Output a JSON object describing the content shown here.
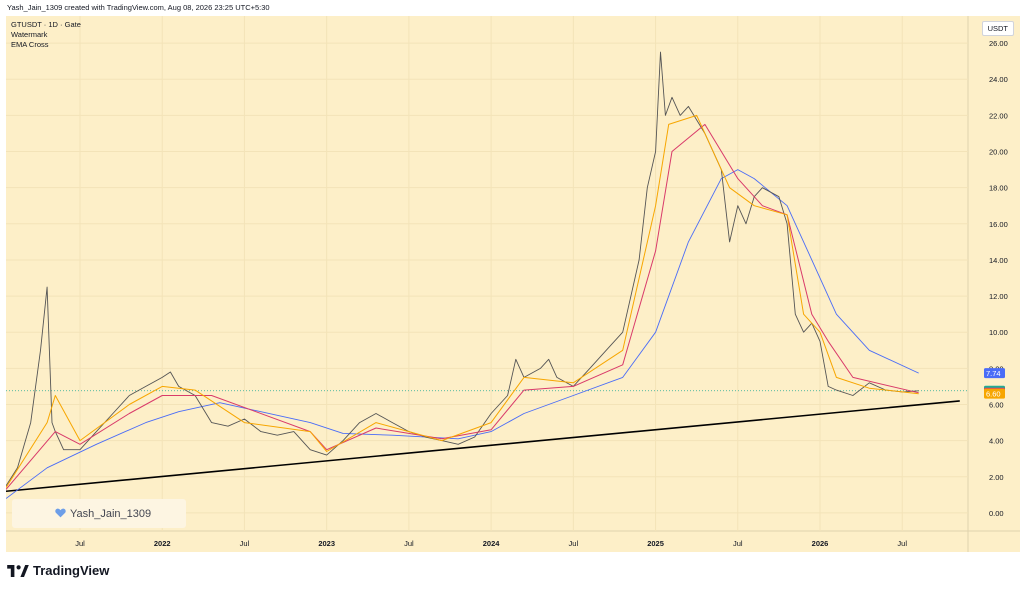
{
  "header": {
    "credit": "Yash_Jain_1309 created with TradingView.com, Aug 08, 2026 23:25 UTC+5:30"
  },
  "legend": {
    "symbol": "GTUSDT · 1D · Gate",
    "line2": "Watermark",
    "line3": "EMA Cross"
  },
  "currency_label": "USDT",
  "watermark_text": "Yash_Jain_1309",
  "brand": {
    "logo_text": "TradingView"
  },
  "colors": {
    "background": "#fdefc8",
    "price": "#555555",
    "ema_fast": "#f7a600",
    "ema_mid": "#d93a6a",
    "ema_slow": "#4a6cf7",
    "trendline": "#000000"
  },
  "chart_data": {
    "type": "line",
    "title": "",
    "y_tick_labels": [
      "0.00",
      "2.00",
      "4.00",
      "6.00",
      "8.00",
      "10.00",
      "12.00",
      "14.00",
      "16.00",
      "18.00",
      "20.00",
      "22.00",
      "24.00",
      "26.00"
    ],
    "x_tick_labels": [
      "Jul",
      "2022",
      "Jul",
      "2023",
      "Jul",
      "2024",
      "Jul",
      "2025",
      "Jul",
      "2026",
      "Jul"
    ],
    "x_tick_dates": [
      2021.5,
      2022.0,
      2022.5,
      2023.0,
      2023.5,
      2024.0,
      2024.5,
      2025.0,
      2025.5,
      2026.0,
      2026.5
    ],
    "ylim": [
      -1,
      27.5
    ],
    "xlim": [
      2021.05,
      2026.9
    ],
    "grid": true,
    "trendline": {
      "from": [
        2021.05,
        1.2
      ],
      "to": [
        2026.85,
        6.2
      ]
    },
    "price_labels": [
      {
        "value": "7.74",
        "color": "#4a6cf7"
      },
      {
        "value": "6.76",
        "color": "#22ab94"
      },
      {
        "value": "6.65",
        "color": "#d93a6a"
      },
      {
        "value": "6.60",
        "color": "#f7a600"
      }
    ],
    "series": [
      {
        "role": "price",
        "x": [
          2021.05,
          2021.12,
          2021.2,
          2021.26,
          2021.3,
          2021.33,
          2021.35,
          2021.4,
          2021.5,
          2021.6,
          2021.7,
          2021.8,
          2021.9,
          2022.0,
          2022.05,
          2022.1,
          2022.2,
          2022.3,
          2022.4,
          2022.5,
          2022.6,
          2022.7,
          2022.8,
          2022.9,
          2023.0,
          2023.1,
          2023.2,
          2023.3,
          2023.4,
          2023.5,
          2023.6,
          2023.7,
          2023.8,
          2023.9,
          2024.0,
          2024.1,
          2024.15,
          2024.2,
          2024.3,
          2024.35,
          2024.4,
          2024.5,
          2024.6,
          2024.7,
          2024.8,
          2024.9,
          2024.95,
          2025.0,
          2025.03,
          2025.06,
          2025.1,
          2025.15,
          2025.2,
          2025.3,
          2025.4,
          2025.45,
          2025.5,
          2025.55,
          2025.6,
          2025.65,
          2025.75,
          2025.8,
          2025.85,
          2025.9,
          2025.95,
          2026.0,
          2026.05,
          2026.1,
          2026.2,
          2026.3,
          2026.4,
          2026.5,
          2026.6
        ],
        "y": [
          1.5,
          2.5,
          5.0,
          9.0,
          12.5,
          5.0,
          4.5,
          3.5,
          3.5,
          4.5,
          5.5,
          6.5,
          7.0,
          7.5,
          7.8,
          7.0,
          6.5,
          5.0,
          4.8,
          5.2,
          4.5,
          4.3,
          4.5,
          3.5,
          3.2,
          4.0,
          5.0,
          5.5,
          5.0,
          4.5,
          4.2,
          4.0,
          3.8,
          4.2,
          5.5,
          6.5,
          8.5,
          7.5,
          8.0,
          8.5,
          7.5,
          7.0,
          8.0,
          9.0,
          10.0,
          14.0,
          18.0,
          20.0,
          25.5,
          22.0,
          23.0,
          22.0,
          22.5,
          21.0,
          19.0,
          15.0,
          17.0,
          16.0,
          17.5,
          18.0,
          17.5,
          16.0,
          11.0,
          10.0,
          10.5,
          9.5,
          7.0,
          6.8,
          6.5,
          7.2,
          6.8,
          6.7,
          6.76
        ]
      },
      {
        "role": "ema_fast",
        "x": [
          2021.05,
          2021.3,
          2021.35,
          2021.5,
          2021.8,
          2022.0,
          2022.2,
          2022.5,
          2022.9,
          2023.0,
          2023.3,
          2023.7,
          2024.0,
          2024.2,
          2024.5,
          2024.8,
          2025.0,
          2025.08,
          2025.25,
          2025.45,
          2025.6,
          2025.8,
          2025.9,
          2026.0,
          2026.1,
          2026.3,
          2026.6
        ],
        "y": [
          1.4,
          5.0,
          6.5,
          4.0,
          6.0,
          7.0,
          6.8,
          5.0,
          4.5,
          3.4,
          5.0,
          4.0,
          5.0,
          7.5,
          7.2,
          9.0,
          17.0,
          21.5,
          22.0,
          18.0,
          17.0,
          16.5,
          11.0,
          10.0,
          7.5,
          6.9,
          6.6
        ]
      },
      {
        "role": "ema_mid",
        "x": [
          2021.05,
          2021.35,
          2021.5,
          2021.8,
          2022.0,
          2022.3,
          2022.9,
          2023.0,
          2023.3,
          2023.7,
          2024.0,
          2024.2,
          2024.5,
          2024.8,
          2025.0,
          2025.1,
          2025.3,
          2025.5,
          2025.65,
          2025.8,
          2025.95,
          2026.05,
          2026.2,
          2026.6
        ],
        "y": [
          1.3,
          4.5,
          3.8,
          5.5,
          6.5,
          6.5,
          4.5,
          3.5,
          4.7,
          4.1,
          4.6,
          6.8,
          7.0,
          8.2,
          14.5,
          20.0,
          21.5,
          18.5,
          17.0,
          16.5,
          11.0,
          9.5,
          7.5,
          6.65
        ]
      },
      {
        "role": "ema_slow",
        "x": [
          2021.05,
          2021.3,
          2021.6,
          2021.9,
          2022.1,
          2022.35,
          2022.6,
          2022.9,
          2023.1,
          2023.4,
          2023.8,
          2024.0,
          2024.2,
          2024.5,
          2024.8,
          2025.0,
          2025.2,
          2025.4,
          2025.5,
          2025.6,
          2025.8,
          2025.95,
          2026.1,
          2026.3,
          2026.6
        ],
        "y": [
          0.8,
          2.5,
          3.8,
          5.0,
          5.6,
          6.1,
          5.6,
          5.0,
          4.4,
          4.3,
          4.1,
          4.5,
          5.5,
          6.5,
          7.5,
          10.0,
          15.0,
          18.5,
          19.0,
          18.5,
          17.0,
          14.0,
          11.0,
          9.0,
          7.74
        ]
      }
    ]
  }
}
